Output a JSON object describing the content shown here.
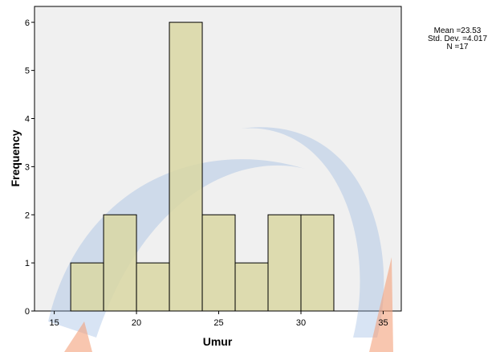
{
  "chart_data": {
    "type": "histogram",
    "x_label": "Umur",
    "y_label": "Frequency",
    "bins": [
      16,
      18,
      20,
      22,
      24,
      26,
      28,
      30,
      32
    ],
    "values": [
      1,
      2,
      1,
      6,
      2,
      1,
      2,
      2
    ],
    "color": "#d9d7a3",
    "xlim": [
      13.8,
      36.1
    ],
    "xticks": [
      15,
      20,
      25,
      30,
      35
    ],
    "ylim": [
      0,
      6.33
    ],
    "yticks": [
      0,
      1,
      2,
      3,
      4,
      5,
      6
    ],
    "stats": [
      "Mean =23.53",
      "Std. Dev. =4.017",
      "N =17"
    ]
  }
}
